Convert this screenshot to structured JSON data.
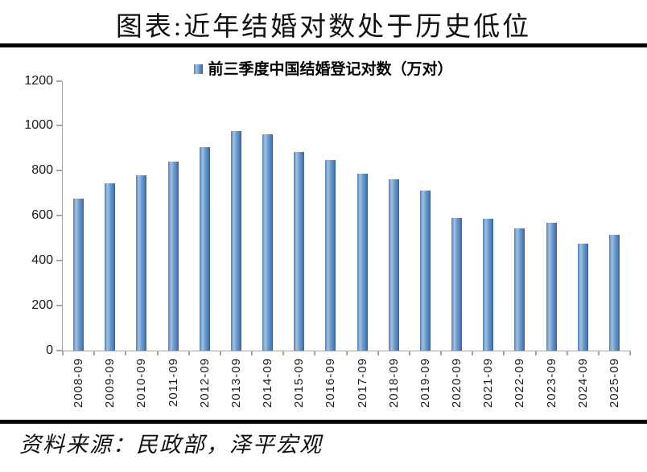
{
  "title": "图表:近年结婚对数处于历史低位",
  "legend": {
    "label": "前三季度中国结婚登记对数（万对）",
    "marker_icon": "blue-square-icon"
  },
  "source": "资料来源：民政部，泽平宏观",
  "colors": {
    "bar_main": "#4f81bd",
    "bar_light": "#a3c1e0",
    "bar_dark": "#3a6191",
    "axis": "#a6a6a6",
    "rule": "#000000",
    "text": "#111111"
  },
  "chart_data": {
    "type": "bar",
    "title": "前三季度中国结婚登记对数（万对）",
    "categories": [
      "2008-09",
      "2009-09",
      "2010-09",
      "2011-09",
      "2012-09",
      "2013-09",
      "2014-09",
      "2015-09",
      "2016-09",
      "2017-09",
      "2018-09",
      "2019-09",
      "2020-09",
      "2021-09",
      "2022-09",
      "2023-09",
      "2024-09",
      "2025-09"
    ],
    "values": [
      677,
      745,
      780,
      841,
      905,
      977,
      962,
      883,
      849,
      788,
      763,
      713,
      589,
      588,
      545,
      569,
      475,
      515
    ],
    "xlabel": "",
    "ylabel": "",
    "ylim": [
      0,
      1200
    ],
    "ytick_step": 200,
    "yticks": [
      0,
      200,
      400,
      600,
      800,
      1000,
      1200
    ],
    "grid": false,
    "legend_position": "top-center"
  }
}
